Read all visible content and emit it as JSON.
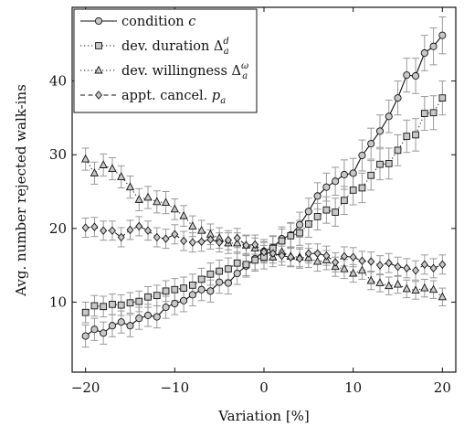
{
  "chart_data": {
    "type": "line",
    "xlabel": "Variation [%]",
    "ylabel": "Avg. number rejected walk-ins",
    "xlim": [
      -21.5,
      21.5
    ],
    "ylim": [
      0.5,
      50
    ],
    "xticks": [
      -20,
      -10,
      0,
      10,
      20
    ],
    "yticks": [
      10,
      20,
      30,
      40
    ],
    "xtick_labels": [
      "−20",
      "−10",
      "0",
      "10",
      "20"
    ],
    "ytick_labels": [
      "10",
      "20",
      "30",
      "40"
    ],
    "grid": false,
    "legend_position": "top-left",
    "x": [
      -20,
      -19,
      -18,
      -17,
      -16,
      -15,
      -14,
      -13,
      -12,
      -11,
      -10,
      -9,
      -8,
      -7,
      -6,
      -5,
      -4,
      -3,
      -2,
      -1,
      0,
      1,
      2,
      3,
      4,
      5,
      6,
      7,
      8,
      9,
      10,
      11,
      12,
      13,
      14,
      15,
      16,
      17,
      18,
      19,
      20
    ],
    "series": [
      {
        "name": "condition c",
        "marker": "circle",
        "line": "solid",
        "values": [
          5.4,
          6.3,
          5.8,
          6.8,
          7.3,
          6.8,
          7.8,
          8.2,
          8.0,
          9.3,
          9.8,
          10.2,
          11.0,
          11.7,
          11.5,
          12.7,
          12.6,
          13.9,
          14.9,
          15.9,
          16.9,
          17.4,
          18.6,
          19.1,
          20.5,
          22.3,
          24.4,
          25.6,
          26.4,
          27.3,
          27.5,
          29.9,
          31.5,
          33.2,
          35.2,
          37.7,
          40.8,
          40.7,
          43.8,
          44.7,
          46.2
        ],
        "errors": [
          1.5,
          1.5,
          1.5,
          1.5,
          1.5,
          1.5,
          1.5,
          1.5,
          1.5,
          1.5,
          1.5,
          1.5,
          1.5,
          1.5,
          1.5,
          1.5,
          1.5,
          1.5,
          1.5,
          1.5,
          1.6,
          1.6,
          1.6,
          1.7,
          1.7,
          1.8,
          1.8,
          1.9,
          1.9,
          2.0,
          2.0,
          2.1,
          2.1,
          2.2,
          2.2,
          2.3,
          2.3,
          2.4,
          2.4,
          2.5,
          2.5
        ]
      },
      {
        "name": "dev. duration",
        "marker": "square",
        "line": "dotted",
        "values": [
          8.6,
          9.5,
          9.4,
          9.7,
          9.6,
          9.9,
          10.1,
          10.7,
          10.9,
          11.5,
          11.7,
          11.9,
          12.3,
          13.1,
          13.8,
          14.2,
          14.5,
          15.3,
          15.1,
          15.7,
          16.1,
          17.3,
          18.3,
          19.0,
          19.4,
          20.6,
          21.6,
          22.5,
          22.2,
          23.8,
          25.2,
          25.5,
          27.2,
          28.7,
          28.8,
          30.6,
          32.5,
          32.7,
          35.6,
          35.7,
          37.7
        ],
        "errors": [
          1.4,
          1.4,
          1.4,
          1.4,
          1.4,
          1.4,
          1.4,
          1.4,
          1.4,
          1.4,
          1.5,
          1.5,
          1.5,
          1.5,
          1.5,
          1.5,
          1.5,
          1.5,
          1.5,
          1.5,
          1.6,
          1.6,
          1.6,
          1.7,
          1.7,
          1.8,
          1.8,
          1.8,
          1.9,
          1.9,
          2.0,
          2.0,
          2.0,
          2.1,
          2.1,
          2.1,
          2.2,
          2.2,
          2.3,
          2.3,
          2.3
        ]
      },
      {
        "name": "dev. willingness",
        "marker": "triangle",
        "line": "dotted",
        "values": [
          29.4,
          27.5,
          28.6,
          28.1,
          27.0,
          25.6,
          23.9,
          24.2,
          23.6,
          23.5,
          22.6,
          21.7,
          20.3,
          19.7,
          19.2,
          18.7,
          18.0,
          18.0,
          17.7,
          17.3,
          16.9,
          16.1,
          16.8,
          16.2,
          16.1,
          16.0,
          15.5,
          15.7,
          14.8,
          14.5,
          13.9,
          14.3,
          12.9,
          12.6,
          12.2,
          12.4,
          11.8,
          11.6,
          11.9,
          11.7,
          10.7
        ],
        "errors": [
          1.5,
          1.5,
          1.5,
          1.5,
          1.5,
          1.5,
          1.5,
          1.5,
          1.5,
          1.5,
          1.4,
          1.4,
          1.4,
          1.4,
          1.4,
          1.4,
          1.4,
          1.4,
          1.4,
          1.4,
          1.3,
          1.3,
          1.3,
          1.3,
          1.3,
          1.3,
          1.3,
          1.3,
          1.3,
          1.3,
          1.2,
          1.2,
          1.2,
          1.2,
          1.2,
          1.2,
          1.2,
          1.2,
          1.2,
          1.2,
          1.2
        ]
      },
      {
        "name": "appt. cancel.",
        "marker": "diamond",
        "line": "dashed",
        "values": [
          20.1,
          20.2,
          19.7,
          19.7,
          18.8,
          19.8,
          20.3,
          19.7,
          18.8,
          18.6,
          19.2,
          18.3,
          18.1,
          18.2,
          18.5,
          18.1,
          18.4,
          18.7,
          17.7,
          17.8,
          16.8,
          16.6,
          16.3,
          16.1,
          15.9,
          16.6,
          16.6,
          16.3,
          15.4,
          16.2,
          16.1,
          15.6,
          15.5,
          15.0,
          15.3,
          14.8,
          14.6,
          14.3,
          15.1,
          14.6,
          15.1
        ],
        "errors": [
          1.3,
          1.3,
          1.3,
          1.3,
          1.3,
          1.3,
          1.3,
          1.3,
          1.3,
          1.3,
          1.3,
          1.3,
          1.3,
          1.3,
          1.3,
          1.3,
          1.3,
          1.3,
          1.3,
          1.3,
          1.3,
          1.3,
          1.3,
          1.3,
          1.3,
          1.3,
          1.3,
          1.3,
          1.3,
          1.3,
          1.3,
          1.3,
          1.3,
          1.3,
          1.3,
          1.3,
          1.3,
          1.3,
          1.3,
          1.3,
          1.3
        ]
      }
    ]
  },
  "legend": [
    {
      "text": "condition ",
      "math": "c",
      "sup": "",
      "sub": ""
    },
    {
      "text": "dev. duration ",
      "math": "Δ",
      "sup": "d",
      "sub": "a"
    },
    {
      "text": "dev. willingness ",
      "math": "Δ",
      "sup": "ω",
      "sub": "a"
    },
    {
      "text": "appt. cancel. ",
      "math": "p",
      "sup": "",
      "sub": "a"
    }
  ]
}
